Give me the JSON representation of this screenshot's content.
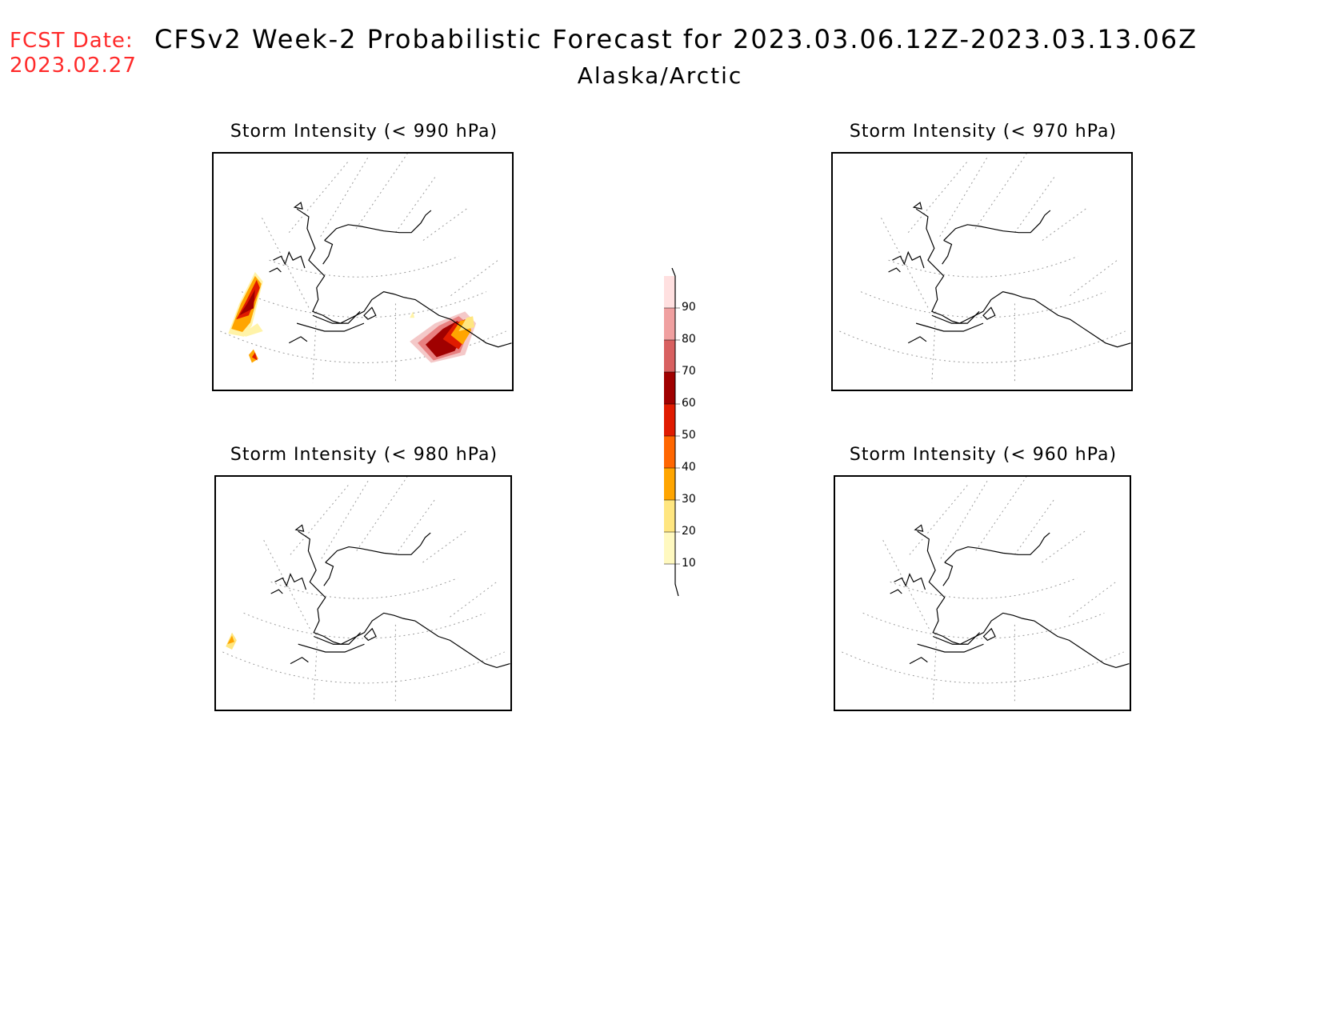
{
  "fcst": {
    "label": "FCST Date:",
    "date": "2023.02.27"
  },
  "title": "CFSv2 Week-2 Probabilistic Forecast for 2023.03.06.12Z-2023.03.13.06Z",
  "subtitle": "Alaska/Arctic",
  "panels": [
    {
      "id": "p990",
      "title": "Storm Intensity (< 990 hPa)",
      "has_probability_shading": true
    },
    {
      "id": "p970",
      "title": "Storm Intensity (< 970 hPa)",
      "has_probability_shading": false
    },
    {
      "id": "p980",
      "title": "Storm Intensity (< 980 hPa)",
      "has_probability_shading": true
    },
    {
      "id": "p960",
      "title": "Storm Intensity (< 960 hPa)",
      "has_probability_shading": false
    }
  ],
  "colorbar": {
    "levels": [
      "10",
      "20",
      "30",
      "40",
      "50",
      "60",
      "70",
      "80",
      "90"
    ],
    "colors": [
      "#fff9c0",
      "#ffe680",
      "#ffa500",
      "#ff6600",
      "#e01b00",
      "#a00000",
      "#d86060",
      "#f0a0a0",
      "#ffe0e0"
    ]
  }
}
